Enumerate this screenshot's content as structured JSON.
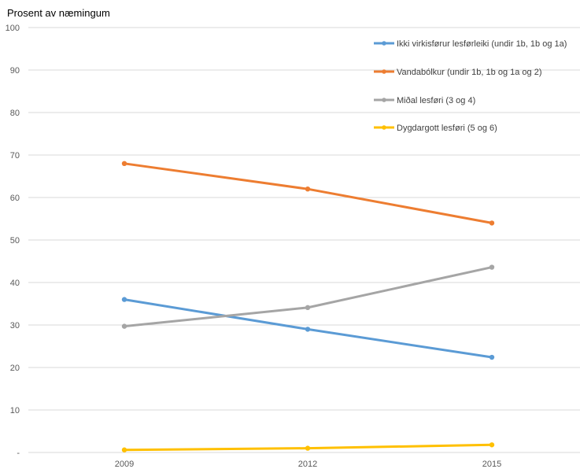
{
  "chart_data": {
    "type": "line",
    "ylabel": "Prosent av næmingum",
    "categories": [
      "2009",
      "2012",
      "2015"
    ],
    "ylim": [
      0,
      100
    ],
    "yticks": [
      "-",
      "10",
      "20",
      "30",
      "40",
      "50",
      "60",
      "70",
      "80",
      "90",
      "100"
    ],
    "grid": true,
    "legend_position": "top-right",
    "series": [
      {
        "name": "Ikki virkisførur lesførleiki (undir 1b, 1b og 1a)",
        "color": "#5B9BD5",
        "values": [
          36,
          29,
          22.4
        ]
      },
      {
        "name": "Vandabólkur (undir 1b, 1b og 1a og 2)",
        "color": "#ED7D31",
        "values": [
          68,
          62,
          54
        ]
      },
      {
        "name": "Miðal lesføri (3 og 4)",
        "color": "#A5A5A5",
        "values": [
          29.7,
          34.1,
          43.6
        ]
      },
      {
        "name": "Dygdargott lesføri (5 og 6)",
        "color": "#FFC000",
        "values": [
          0.6,
          1,
          1.8
        ]
      }
    ]
  }
}
